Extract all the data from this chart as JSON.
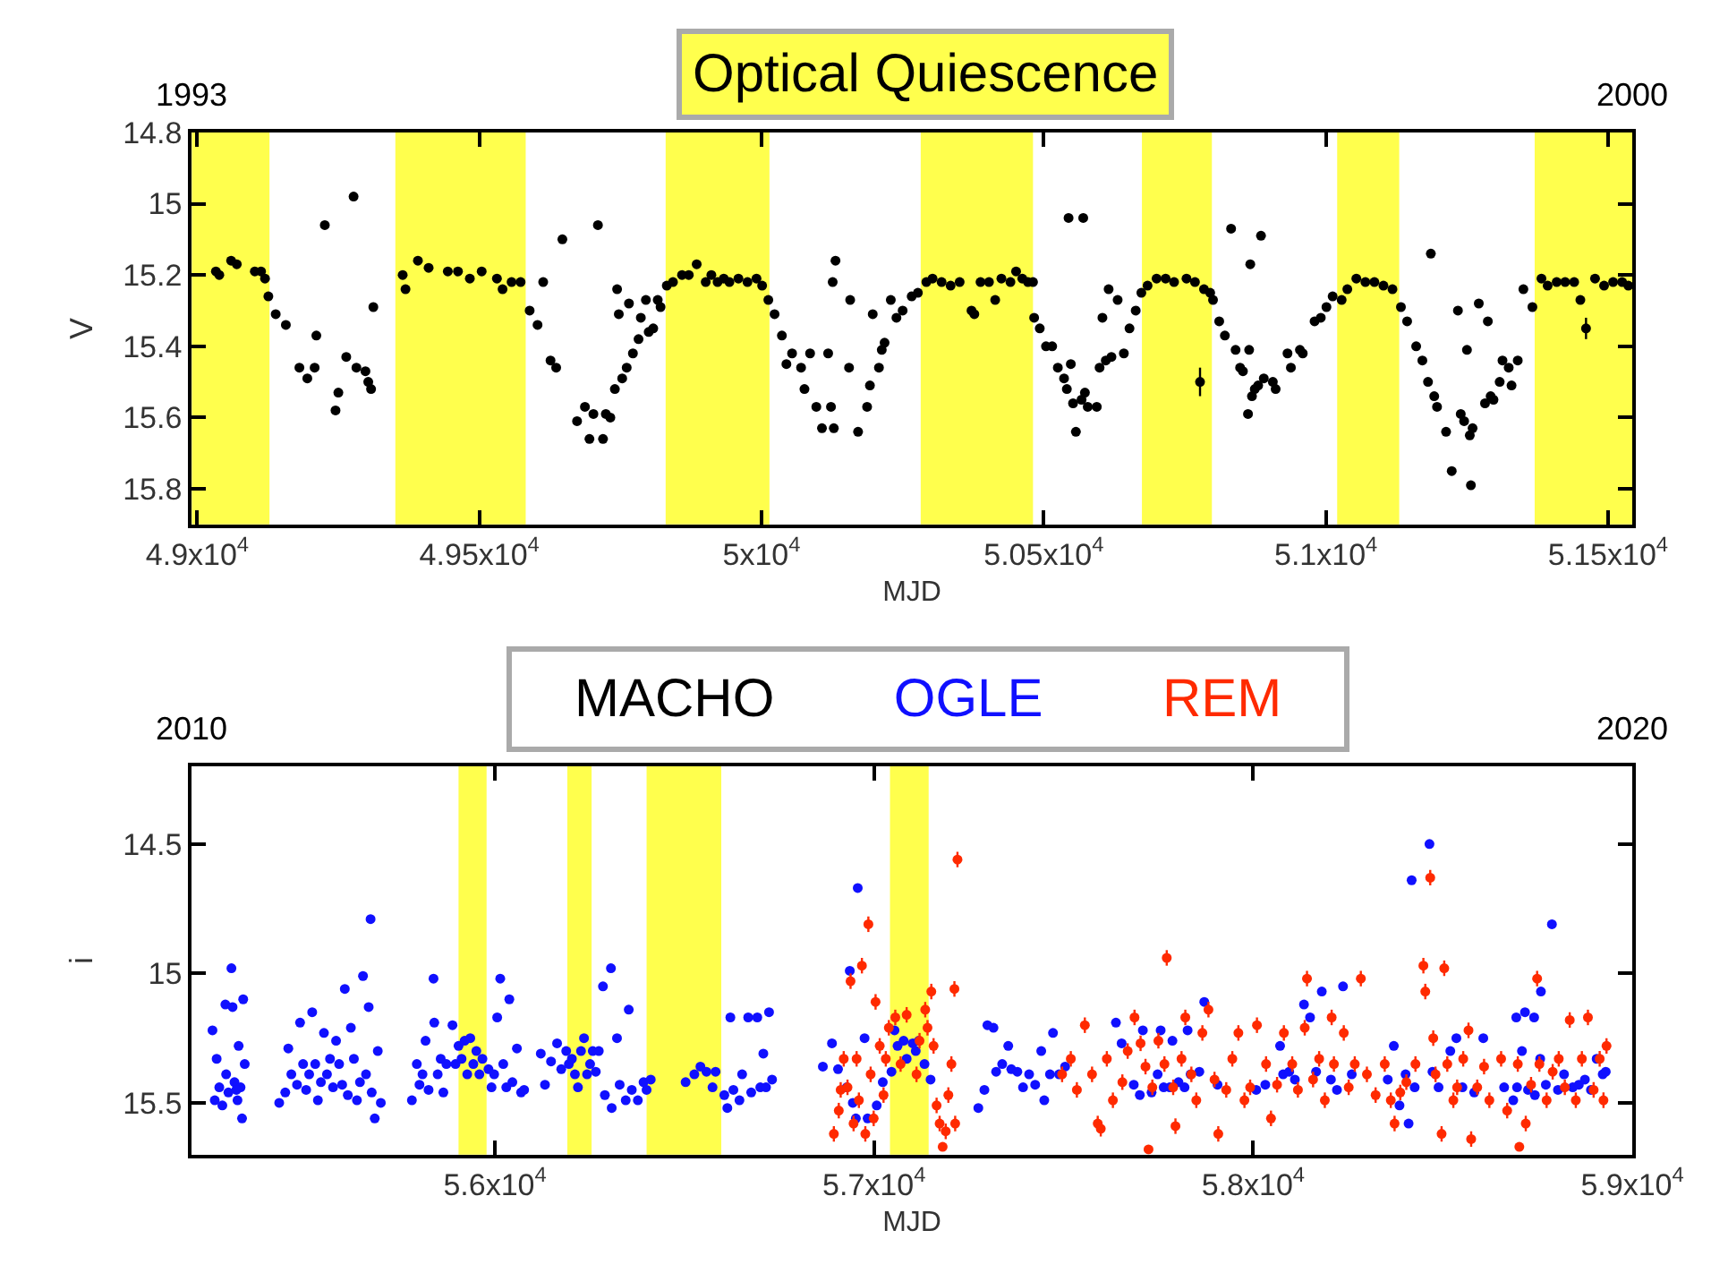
{
  "chart_data": [
    {
      "type": "scatter",
      "title": "Optical Quiescence",
      "xlabel": "MJD",
      "ylabel": "V",
      "marker": "circle",
      "grid": false,
      "legend": "bottom",
      "annotations": [
        "1993",
        "2000"
      ],
      "xlim": [
        48990,
        51543
      ],
      "ylim": [
        15.9,
        14.8
      ],
      "xticks": [
        {
          "value": 49000,
          "label": "4.9x10$^{4}$"
        },
        {
          "value": 49500,
          "label": "4.95x10$^{4}$"
        },
        {
          "value": 50000,
          "label": "5x10$^{4}$"
        },
        {
          "value": 50500,
          "label": "5.05x10$^{4}$"
        },
        {
          "value": 51000,
          "label": "5.1x10$^{4}$"
        },
        {
          "value": 51500,
          "label": "5.15x10$^{4}$"
        }
      ],
      "yticks": [
        14.8,
        15,
        15.2,
        15.4,
        15.6,
        15.8
      ],
      "bands": [
        {
          "axis": "x",
          "from": 48990,
          "to": 49128,
          "color": "#ffff4d"
        },
        {
          "axis": "x",
          "from": 49351,
          "to": 49582,
          "color": "#ffff4d"
        },
        {
          "axis": "x",
          "from": 49830,
          "to": 50014,
          "color": "#ffff4d"
        },
        {
          "axis": "x",
          "from": 50282,
          "to": 50481,
          "color": "#ffff4d"
        },
        {
          "axis": "x",
          "from": 50674,
          "to": 50798,
          "color": "#ffff4d"
        },
        {
          "axis": "x",
          "from": 51020,
          "to": 51130,
          "color": "#ffff4d"
        },
        {
          "axis": "x",
          "from": 51370,
          "to": 51543,
          "color": "#ffff4d"
        }
      ],
      "series": [
        {
          "name": "MACHO",
          "color": "#000000",
          "x": [
            49033,
            49039,
            49060,
            49070,
            49102,
            49113,
            49120,
            49126,
            49139,
            49157,
            49181,
            49195,
            49208,
            49211,
            49226,
            49245,
            49250,
            49264,
            49277,
            49282,
            49298,
            49303,
            49308,
            49312,
            49364,
            49369,
            49391,
            49410,
            49444,
            49462,
            49483,
            49504,
            49531,
            49541,
            49557,
            49573,
            49589,
            49603,
            49613,
            49626,
            49636,
            49647,
            49673,
            49687,
            49695,
            49702,
            49710,
            49719,
            49724,
            49732,
            49740,
            49744,
            49747,
            49753,
            49761,
            49765,
            49772,
            49782,
            49786,
            49795,
            49800,
            49808,
            49816,
            49821,
            49832,
            49843,
            49859,
            49871,
            49885,
            49901,
            49911,
            49922,
            49933,
            49943,
            49959,
            49975,
            49991,
            50001,
            50012,
            50023,
            50036,
            50044,
            50054,
            50070,
            50076,
            50086,
            50097,
            50107,
            50118,
            50123,
            50128,
            50131,
            50126,
            50157,
            50155,
            50171,
            50187,
            50192,
            50197,
            50208,
            50213,
            50218,
            50229,
            50239,
            50250,
            50266,
            50277,
            50292,
            50303,
            50319,
            50335,
            50351,
            50372,
            50377,
            50388,
            50403,
            50414,
            50425,
            50441,
            50451,
            50462,
            50472,
            50481,
            50483,
            50493,
            50504,
            50515,
            50525,
            50536,
            50541,
            50548,
            50552,
            50557,
            50567,
            50573,
            50578,
            50594,
            50544,
            50570,
            50599,
            50604,
            50610,
            50615,
            50620,
            50631,
            50642,
            50652,
            50663,
            50673,
            50684,
            50700,
            50716,
            50731,
            50753,
            50768,
            50784,
            50795,
            50800,
            50811,
            50821,
            50832,
            50840,
            50848,
            50853,
            50862,
            50864,
            50866,
            50869,
            50874,
            50880,
            50885,
            50890,
            50906,
            50911,
            50932,
            50938,
            50954,
            50959,
            50980,
            50991,
            51001,
            51012,
            51028,
            51038,
            51054,
            51070,
            51086,
            51102,
            51118,
            51133,
            51144,
            51160,
            51171,
            51181,
            51186,
            51192,
            51197,
            51213,
            51223,
            51234,
            51239,
            51245,
            51250,
            51255,
            51257,
            51260,
            51271,
            51282,
            51287,
            51292,
            51297,
            51308,
            51313,
            51324,
            51329,
            51340,
            51350,
            51366,
            51382,
            51393,
            51409,
            51424,
            51440,
            51451,
            51477,
            51493,
            51509,
            51525,
            51536
          ],
          "values": [
            15.19,
            15.2,
            15.16,
            15.17,
            15.19,
            15.19,
            15.21,
            15.26,
            15.31,
            15.34,
            15.46,
            15.49,
            15.46,
            15.37,
            15.06,
            15.58,
            15.53,
            15.43,
            14.98,
            15.46,
            15.47,
            15.5,
            15.52,
            15.29,
            15.2,
            15.24,
            15.16,
            15.18,
            15.19,
            15.19,
            15.21,
            15.19,
            15.21,
            15.24,
            15.22,
            15.22,
            15.3,
            15.34,
            15.22,
            15.44,
            15.46,
            15.1,
            15.61,
            15.57,
            15.66,
            15.59,
            15.06,
            15.66,
            15.59,
            15.6,
            15.52,
            15.24,
            15.31,
            15.49,
            15.46,
            15.28,
            15.42,
            15.38,
            15.32,
            15.27,
            15.36,
            15.35,
            15.27,
            15.29,
            15.23,
            15.22,
            15.2,
            15.2,
            15.17,
            15.22,
            15.2,
            15.22,
            15.21,
            15.22,
            15.21,
            15.22,
            15.21,
            15.23,
            15.27,
            15.31,
            15.37,
            15.45,
            15.42,
            15.46,
            15.52,
            15.42,
            15.57,
            15.63,
            15.42,
            15.57,
            15.63,
            15.16,
            15.22,
            15.27,
            15.46,
            15.64,
            15.57,
            15.51,
            15.31,
            15.46,
            15.41,
            15.39,
            15.27,
            15.32,
            15.3,
            15.26,
            15.25,
            15.22,
            15.21,
            15.22,
            15.23,
            15.22,
            15.3,
            15.31,
            15.22,
            15.22,
            15.27,
            15.21,
            15.22,
            15.19,
            15.21,
            15.22,
            15.22,
            15.32,
            15.35,
            15.4,
            15.4,
            15.46,
            15.49,
            15.52,
            15.45,
            15.56,
            15.64,
            15.55,
            15.53,
            15.57,
            15.57,
            15.04,
            15.04,
            15.46,
            15.32,
            15.44,
            15.24,
            15.43,
            15.27,
            15.42,
            15.35,
            15.3,
            15.25,
            15.23,
            15.21,
            15.21,
            15.22,
            15.21,
            15.22,
            15.24,
            15.25,
            15.27,
            15.33,
            15.37,
            15.07,
            15.41,
            15.46,
            15.47,
            15.59,
            15.41,
            15.17,
            15.54,
            15.52,
            15.51,
            15.09,
            15.49,
            15.5,
            15.52,
            15.42,
            15.46,
            15.41,
            15.42,
            15.33,
            15.32,
            15.29,
            15.26,
            15.27,
            15.24,
            15.21,
            15.22,
            15.22,
            15.23,
            15.24,
            15.29,
            15.33,
            15.4,
            15.44,
            15.5,
            15.14,
            15.54,
            15.57,
            15.64,
            15.75,
            15.3,
            15.59,
            15.61,
            15.41,
            15.65,
            15.79,
            15.63,
            15.28,
            15.56,
            15.33,
            15.54,
            15.55,
            15.5,
            15.44,
            15.46,
            15.51,
            15.44,
            15.24,
            15.29,
            15.21,
            15.23,
            15.22,
            15.22,
            15.22,
            15.27,
            15.21,
            15.23,
            15.22,
            15.22,
            15.23
          ]
        },
        {
          "color": "#000000",
          "x": [
            50777,
            51461
          ],
          "values": [
            15.5,
            15.35
          ],
          "errors": [
            0.04,
            0.03
          ]
        }
      ]
    },
    {
      "type": "scatter",
      "xlabel": "MJD",
      "ylabel": "i",
      "marker": "circle",
      "grid": false,
      "legend": "top",
      "annotations": [
        "2010",
        "2020"
      ],
      "xlim": [
        55200,
        59000
      ],
      "ylim": [
        15.7,
        14.2
      ],
      "xticks": [
        {
          "value": 56000,
          "label": "5.6x10$^{4}$"
        },
        {
          "value": 57000,
          "label": "5.7x10$^{4}$"
        },
        {
          "value": 58000,
          "label": "5.8x10$^{4}$"
        },
        {
          "value": 59000,
          "label": "5.9x10$^{4}$"
        }
      ],
      "yticks": [
        14.5,
        15,
        15.5
      ],
      "bands": [
        {
          "axis": "x",
          "from": 55904,
          "to": 55978,
          "color": "#ffff4d"
        },
        {
          "axis": "x",
          "from": 56191,
          "to": 56255,
          "color": "#ffff4d"
        },
        {
          "axis": "x",
          "from": 56400,
          "to": 56597,
          "color": "#ffff4d"
        },
        {
          "axis": "x",
          "from": 57042,
          "to": 57144,
          "color": "#ffff4d"
        }
      ],
      "series": [
        {
          "name": "OGLE",
          "color": "#1010ff",
          "x": [
            55255,
            55266,
            55273,
            55281,
            55289,
            55297,
            55305,
            55308,
            55313,
            55321,
            55324,
            55329,
            55333,
            55336,
            55340,
            55261,
            55291,
            55318,
            55431,
            55447,
            55455,
            55463,
            55478,
            55486,
            55494,
            55502,
            55510,
            55518,
            55526,
            55533,
            55541,
            55549,
            55557,
            55565,
            55573,
            55581,
            55589,
            55597,
            55604,
            55612,
            55620,
            55628,
            55636,
            55644,
            55652,
            55660,
            55667,
            55672,
            55675,
            55683,
            55691,
            55699,
            55781,
            55794,
            55801,
            55809,
            55817,
            55825,
            55838,
            55840,
            55849,
            55857,
            55864,
            55872,
            55888,
            55896,
            55904,
            55912,
            55920,
            55927,
            55935,
            55943,
            55951,
            55959,
            55967,
            55983,
            55991,
            55998,
            56006,
            56014,
            56022,
            56030,
            56038,
            56046,
            56058,
            56069,
            56077,
            56121,
            56132,
            56148,
            56164,
            56175,
            56188,
            56195,
            56203,
            56211,
            56219,
            56227,
            56235,
            56243,
            56251,
            56258,
            56266,
            56274,
            56285,
            56290,
            56306,
            56308,
            56322,
            56329,
            56345,
            56353,
            56361,
            56377,
            56392,
            56400,
            56411,
            56503,
            56526,
            56542,
            56558,
            56574,
            56582,
            56605,
            56613,
            56621,
            56629,
            56645,
            56652,
            56668,
            56676,
            56692,
            56700,
            56708,
            56715,
            56723,
            56731,
            56865,
            56889,
            56905,
            56928,
            56936,
            56944,
            56952,
            56957,
            56975,
            56983,
            57007,
            57023,
            57046,
            57054,
            57062,
            57078,
            57086,
            57102,
            57110,
            57118,
            57133,
            57149,
            57275,
            57291,
            57299,
            57315,
            57322,
            57338,
            57354,
            57362,
            57378,
            57393,
            57409,
            57425,
            57441,
            57449,
            57464,
            57472,
            57488,
            57504,
            57638,
            57653,
            57685,
            57701,
            57709,
            57732,
            57748,
            57756,
            57764,
            57780,
            57787,
            57803,
            57819,
            57827,
            57835,
            57858,
            57871,
            57906,
            58008,
            58032,
            58071,
            58079,
            58095,
            58110,
            58134,
            58150,
            58166,
            58181,
            58205,
            58221,
            58237,
            58260,
            58355,
            58371,
            58386,
            58402,
            58410,
            58418,
            58426,
            58465,
            58473,
            58489,
            58520,
            58536,
            58552,
            58583,
            58607,
            58662,
            58686,
            58694,
            58696,
            58709,
            58717,
            58725,
            58741,
            58743,
            58757,
            58759,
            58772,
            58788,
            58804,
            58820,
            58843,
            58859,
            58875,
            58891,
            58906,
            58922,
            58930
          ],
          "values": [
            15.22,
            15.33,
            15.44,
            15.51,
            15.12,
            15.46,
            14.98,
            15.13,
            15.42,
            15.49,
            15.28,
            15.44,
            15.56,
            15.1,
            15.35,
            15.49,
            15.39,
            15.45,
            15.5,
            15.46,
            15.29,
            15.39,
            15.43,
            15.19,
            15.35,
            15.45,
            15.39,
            15.15,
            15.35,
            15.49,
            15.42,
            15.23,
            15.39,
            15.33,
            15.44,
            15.26,
            15.35,
            15.43,
            15.06,
            15.47,
            15.21,
            15.33,
            15.49,
            15.42,
            15.01,
            15.39,
            15.13,
            14.79,
            15.46,
            15.56,
            15.3,
            15.5,
            15.49,
            15.35,
            15.43,
            15.39,
            15.26,
            15.45,
            15.02,
            15.19,
            15.39,
            15.33,
            15.46,
            15.35,
            15.2,
            15.35,
            15.28,
            15.33,
            15.26,
            15.39,
            15.25,
            15.35,
            15.3,
            15.39,
            15.33,
            15.37,
            15.44,
            15.39,
            15.17,
            15.02,
            15.35,
            15.44,
            15.1,
            15.42,
            15.29,
            15.46,
            15.45,
            15.31,
            15.43,
            15.34,
            15.27,
            15.37,
            15.3,
            15.35,
            15.33,
            15.39,
            15.44,
            15.3,
            15.25,
            15.39,
            15.35,
            15.3,
            15.38,
            15.3,
            15.05,
            15.47,
            14.98,
            15.52,
            15.25,
            15.43,
            15.49,
            15.14,
            15.45,
            15.49,
            15.42,
            15.45,
            15.41,
            15.42,
            15.39,
            15.36,
            15.38,
            15.44,
            15.38,
            15.47,
            15.52,
            15.17,
            15.45,
            15.49,
            15.39,
            15.17,
            15.46,
            15.17,
            15.44,
            15.31,
            15.44,
            15.15,
            15.41,
            15.36,
            15.27,
            15.37,
            15.44,
            14.99,
            15.5,
            15.56,
            14.67,
            15.25,
            15.56,
            15.51,
            15.42,
            15.38,
            15.22,
            15.28,
            15.26,
            15.33,
            15.27,
            15.3,
            15.26,
            15.35,
            15.41,
            15.52,
            15.45,
            15.2,
            15.21,
            15.38,
            15.35,
            15.28,
            15.37,
            15.38,
            15.44,
            15.39,
            15.43,
            15.3,
            15.49,
            15.39,
            15.23,
            15.39,
            15.36,
            15.19,
            15.27,
            15.43,
            15.47,
            15.22,
            15.46,
            15.39,
            15.22,
            15.44,
            15.44,
            15.26,
            15.42,
            15.44,
            15.22,
            15.39,
            15.38,
            15.11,
            15.43,
            15.45,
            15.43,
            15.28,
            15.39,
            15.38,
            15.41,
            15.12,
            15.17,
            15.38,
            15.07,
            15.41,
            15.45,
            15.05,
            15.39,
            15.41,
            15.28,
            15.51,
            15.39,
            15.58,
            14.64,
            15.44,
            14.5,
            15.38,
            15.44,
            15.3,
            15.25,
            15.44,
            15.46,
            15.25,
            15.44,
            15.49,
            15.17,
            15.44,
            15.3,
            15.15,
            15.45,
            15.17,
            15.47,
            15.33,
            15.07,
            15.43,
            14.81,
            15.45,
            15.39,
            15.44,
            15.43,
            15.41,
            15.45,
            15.33,
            15.39,
            15.38
          ]
        },
        {
          "name": "REM",
          "color": "#ff2a00",
          "x": [
            56894,
            56907,
            56912,
            56920,
            56930,
            56938,
            56946,
            56954,
            56960,
            56968,
            56977,
            56985,
            56991,
            56999,
            57004,
            57015,
            57025,
            57031,
            57039,
            57056,
            57070,
            57086,
            57112,
            57120,
            57135,
            57141,
            57151,
            57157,
            57165,
            57173,
            57181,
            57189,
            57196,
            57204,
            57212,
            57214,
            57220,
            57496,
            57519,
            57535,
            57556,
            57575,
            57590,
            57598,
            57614,
            57630,
            57655,
            57669,
            57687,
            57703,
            57716,
            57724,
            57734,
            57750,
            57766,
            57772,
            57789,
            57795,
            57811,
            57821,
            57837,
            57850,
            57866,
            57882,
            57898,
            57908,
            57929,
            57945,
            57961,
            57977,
            57992,
            58010,
            58034,
            58047,
            58063,
            58081,
            58103,
            58118,
            58136,
            58142,
            58158,
            58174,
            58189,
            58207,
            58213,
            58239,
            58252,
            58268,
            58284,
            58300,
            58323,
            58347,
            58363,
            58373,
            58388,
            58404,
            58428,
            58449,
            58454,
            58467,
            58475,
            58481,
            58497,
            58504,
            58512,
            58528,
            58538,
            58554,
            58568,
            58575,
            58591,
            58609,
            58623,
            58654,
            58670,
            58698,
            58702,
            58719,
            58733,
            58749,
            58755,
            58774,
            58790,
            58806,
            58822,
            58835,
            58851,
            58867,
            58883,
            58898,
            58914,
            58924,
            58932
          ],
          "values": [
            15.62,
            15.53,
            15.45,
            15.33,
            15.44,
            15.03,
            15.58,
            15.33,
            15.49,
            14.97,
            15.62,
            14.81,
            15.39,
            15.56,
            15.11,
            15.28,
            15.47,
            15.33,
            15.21,
            15.17,
            15.35,
            15.16,
            15.39,
            15.26,
            15.14,
            15.21,
            15.07,
            15.28,
            15.51,
            15.58,
            15.67,
            15.61,
            15.47,
            15.35,
            15.06,
            15.58,
            14.56,
            15.39,
            15.33,
            15.45,
            15.2,
            15.39,
            15.58,
            15.6,
            15.33,
            15.49,
            15.42,
            15.3,
            15.17,
            15.27,
            15.36,
            15.68,
            15.44,
            15.26,
            15.35,
            14.94,
            15.44,
            15.59,
            15.33,
            15.17,
            15.39,
            15.49,
            15.23,
            15.14,
            15.41,
            15.62,
            15.45,
            15.33,
            15.23,
            15.49,
            15.44,
            15.2,
            15.35,
            15.56,
            15.43,
            15.23,
            15.35,
            15.45,
            15.21,
            15.02,
            15.41,
            15.33,
            15.49,
            15.17,
            15.35,
            15.23,
            15.44,
            15.35,
            15.02,
            15.39,
            15.47,
            15.35,
            15.49,
            15.58,
            15.46,
            15.42,
            15.35,
            14.97,
            15.07,
            14.63,
            15.25,
            15.39,
            15.62,
            14.98,
            15.35,
            15.49,
            15.44,
            15.33,
            15.22,
            15.64,
            15.44,
            15.36,
            15.49,
            15.33,
            15.53,
            15.35,
            15.67,
            15.58,
            15.43,
            15.02,
            15.35,
            15.49,
            15.38,
            15.33,
            15.44,
            15.18,
            15.49,
            15.33,
            15.17,
            15.45,
            15.33,
            15.49,
            15.28
          ],
          "errors": [
            0.03,
            0.03,
            0.03,
            0.03,
            0.03,
            0.03,
            0.03,
            0.03,
            0.03,
            0.03,
            0.03,
            0.03,
            0.03,
            0.03,
            0.03,
            0.03,
            0.03,
            0.03,
            0.03,
            0.03,
            0.03,
            0.03,
            0.03,
            0.03,
            0.03,
            0.03,
            0.03,
            0.03,
            0.03,
            0.03,
            0.015,
            0.03,
            0.03,
            0.03,
            0.03,
            0.03,
            0.03,
            0.03,
            0.03,
            0.03,
            0.03,
            0.03,
            0.03,
            0.03,
            0.03,
            0.03,
            0.03,
            0.03,
            0.03,
            0.03,
            0.03,
            0.015,
            0.03,
            0.03,
            0.03,
            0.03,
            0.03,
            0.03,
            0.03,
            0.03,
            0.03,
            0.03,
            0.03,
            0.03,
            0.03,
            0.03,
            0.03,
            0.03,
            0.03,
            0.03,
            0.03,
            0.03,
            0.03,
            0.03,
            0.03,
            0.03,
            0.03,
            0.03,
            0.03,
            0.03,
            0.03,
            0.03,
            0.03,
            0.03,
            0.03,
            0.03,
            0.03,
            0.03,
            0.03,
            0.03,
            0.03,
            0.03,
            0.03,
            0.03,
            0.03,
            0.03,
            0.03,
            0.03,
            0.03,
            0.03,
            0.03,
            0.03,
            0.03,
            0.03,
            0.03,
            0.03,
            0.03,
            0.03,
            0.03,
            0.03,
            0.03,
            0.03,
            0.03,
            0.03,
            0.03,
            0.03,
            0.015,
            0.03,
            0.03,
            0.03,
            0.03,
            0.03,
            0.03,
            0.03,
            0.03,
            0.03,
            0.03,
            0.03,
            0.03,
            0.03,
            0.03,
            0.03,
            0.03
          ]
        }
      ]
    }
  ]
}
